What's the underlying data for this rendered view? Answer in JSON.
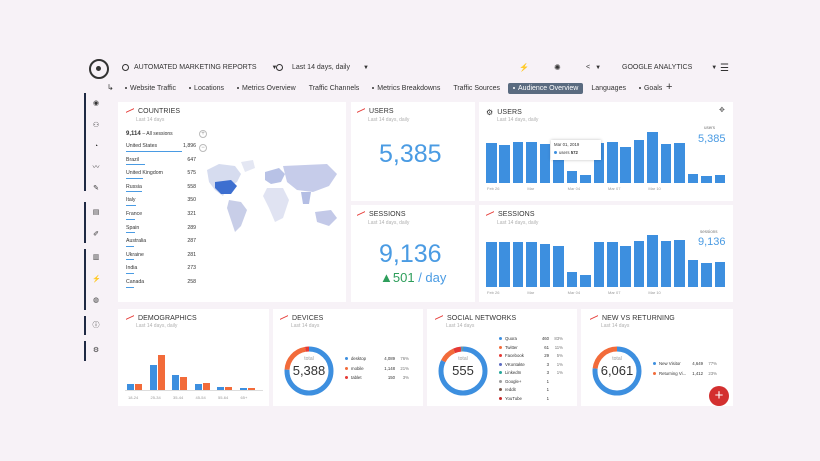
{
  "header": {
    "report": "AUTOMATED MARKETING REPORTS",
    "date_range": "Last 14 days, daily",
    "source": "GOOGLE ANALYTICS"
  },
  "tabs": [
    {
      "label": "Website Traffic",
      "dot": true
    },
    {
      "label": "Locations",
      "dot": true
    },
    {
      "label": "Metrics Overview",
      "dot": true
    },
    {
      "label": "Traffic Channels",
      "dot": false
    },
    {
      "label": "Metrics Breakdowns",
      "dot": true
    },
    {
      "label": "Traffic Sources",
      "dot": false
    },
    {
      "label": "Audience Overview",
      "dot": true,
      "active": true
    },
    {
      "label": "Languages",
      "dot": false
    },
    {
      "label": "Goals",
      "dot": true
    }
  ],
  "countries": {
    "title": "COUNTRIES",
    "subtitle": "Last 14 days",
    "total": "9,114",
    "total_label": "– All sessions",
    "rows": [
      [
        "United States",
        "1,896"
      ],
      [
        "Brazil",
        "647"
      ],
      [
        "United Kingdom",
        "575"
      ],
      [
        "Russia",
        "558"
      ],
      [
        "Italy",
        "350"
      ],
      [
        "France",
        "321"
      ],
      [
        "Spain",
        "289"
      ],
      [
        "Australia",
        "287"
      ],
      [
        "Ukraine",
        "281"
      ],
      [
        "India",
        "273"
      ],
      [
        "Canada",
        "258"
      ]
    ]
  },
  "users_kpi": {
    "title": "USERS",
    "subtitle": "Last 14 days, daily",
    "value": "5,385"
  },
  "sessions_kpi": {
    "title": "SESSIONS",
    "subtitle": "Last 14 days, daily",
    "value": "9,136",
    "delta": "▲501",
    "unit": "/ day"
  },
  "users_chart": {
    "title": "USERS",
    "subtitle": "Last 14 days, daily",
    "legend": "users",
    "total": "5,385",
    "values": [
      600,
      570,
      610,
      610,
      590,
      550,
      180,
      120,
      600,
      610,
      540,
      650,
      770,
      590,
      600,
      130,
      110,
      120
    ],
    "xlabels": [
      "Feb 26",
      "Mar",
      "Mar 04",
      "Mar 07",
      "Mar 10"
    ],
    "tooltip": {
      "date": "Mar 01, 2019",
      "label": "users",
      "value": "572"
    }
  },
  "sessions_chart": {
    "title": "SESSIONS",
    "subtitle": "Last 14 days, daily",
    "legend": "sessions",
    "total": "9,136",
    "values": [
      760,
      760,
      770,
      760,
      730,
      690,
      250,
      210,
      760,
      770,
      690,
      780,
      880,
      780,
      800,
      460,
      410,
      430
    ],
    "xlabels": [
      "Feb 26",
      "Mar",
      "Mar 04",
      "Mar 07",
      "Mar 10"
    ]
  },
  "demographics": {
    "title": "DEMOGRAPHICS",
    "subtitle": "Last 14 days, daily",
    "categories": [
      "18-24",
      "25-34",
      "35-44",
      "45-54",
      "55-64",
      "65+"
    ],
    "male": [
      1.5,
      5.8,
      3.5,
      1.4,
      0.7,
      0.5
    ],
    "female": [
      1.3,
      8.2,
      3.1,
      1.6,
      0.8,
      0.4
    ],
    "colors": {
      "male": "#3d8fdf",
      "female": "#f26b3a"
    }
  },
  "devices": {
    "title": "DEVICES",
    "subtitle": "Last 14 days",
    "total_label": "total",
    "total": "5,388",
    "items": [
      [
        "desktop",
        "4,089",
        "76%",
        "#3d8fdf"
      ],
      [
        "mobile",
        "1,148",
        "21%",
        "#f26b3a"
      ],
      [
        "tablet",
        "150",
        "3%",
        "#e53935"
      ]
    ]
  },
  "social": {
    "title": "SOCIAL NETWORKS",
    "subtitle": "Last 14 days",
    "total_label": "total",
    "total": "555",
    "items": [
      [
        "Quora",
        "460",
        "83%",
        "#3d8fdf"
      ],
      [
        "Twitter",
        "61",
        "11%",
        "#f26b3a"
      ],
      [
        "Facebook",
        "29",
        "5%",
        "#e53935"
      ],
      [
        "VKontakte",
        "3",
        "1%",
        "#5c6bc0"
      ],
      [
        "LinkedIn",
        "3",
        "1%",
        "#26a69a"
      ],
      [
        "Google+",
        "1",
        "",
        "#9e9e9e"
      ],
      [
        "reddit",
        "1",
        "",
        "#795548"
      ],
      [
        "YouTube",
        "1",
        "",
        "#c62828"
      ]
    ]
  },
  "new_returning": {
    "title": "NEW VS RETURNING",
    "subtitle": "Last 14 days",
    "total_label": "total",
    "total": "6,061",
    "items": [
      [
        "New Visitor",
        "4,649",
        "77%",
        "#3d8fdf"
      ],
      [
        "Returning Vi...",
        "1,412",
        "23%",
        "#f26b3a"
      ]
    ]
  }
}
